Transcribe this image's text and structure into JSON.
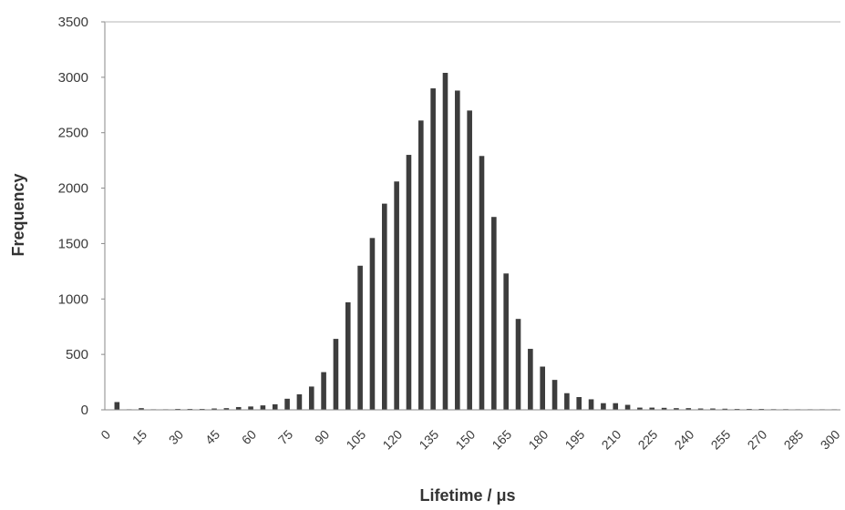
{
  "chart_data": {
    "type": "bar",
    "title": "",
    "xlabel": "Lifetime / μs",
    "ylabel": "Frequency",
    "ylim": [
      0,
      3500
    ],
    "yticks": [
      "0",
      "500",
      "1000",
      "1500",
      "2000",
      "2500",
      "3000",
      "3500"
    ],
    "xticks": [
      "0",
      "15",
      "30",
      "45",
      "60",
      "75",
      "90",
      "105",
      "120",
      "135",
      "150",
      "165",
      "180",
      "195",
      "210",
      "225",
      "240",
      "255",
      "270",
      "285",
      "300"
    ],
    "grid": false,
    "legend": "none",
    "bin_width": 5,
    "bar_color": "#3d3d3d",
    "x": [
      5,
      10,
      15,
      20,
      25,
      30,
      35,
      40,
      45,
      50,
      55,
      60,
      65,
      70,
      75,
      80,
      85,
      90,
      95,
      100,
      105,
      110,
      115,
      120,
      125,
      130,
      135,
      140,
      145,
      150,
      155,
      160,
      165,
      170,
      175,
      180,
      185,
      190,
      195,
      200,
      205,
      210,
      215,
      220,
      225,
      230,
      235,
      240,
      245,
      250,
      255,
      260,
      265,
      270,
      275,
      280,
      285,
      290,
      295,
      300
    ],
    "values": [
      70,
      5,
      15,
      5,
      5,
      8,
      8,
      8,
      12,
      15,
      25,
      30,
      40,
      50,
      100,
      140,
      210,
      340,
      640,
      970,
      1300,
      1550,
      1860,
      2060,
      2300,
      2610,
      2900,
      3040,
      2880,
      2700,
      2290,
      1740,
      1230,
      820,
      550,
      390,
      270,
      150,
      115,
      95,
      60,
      60,
      45,
      20,
      20,
      18,
      15,
      15,
      12,
      12,
      10,
      8,
      8,
      8,
      6,
      6,
      5,
      5,
      5,
      5
    ]
  }
}
